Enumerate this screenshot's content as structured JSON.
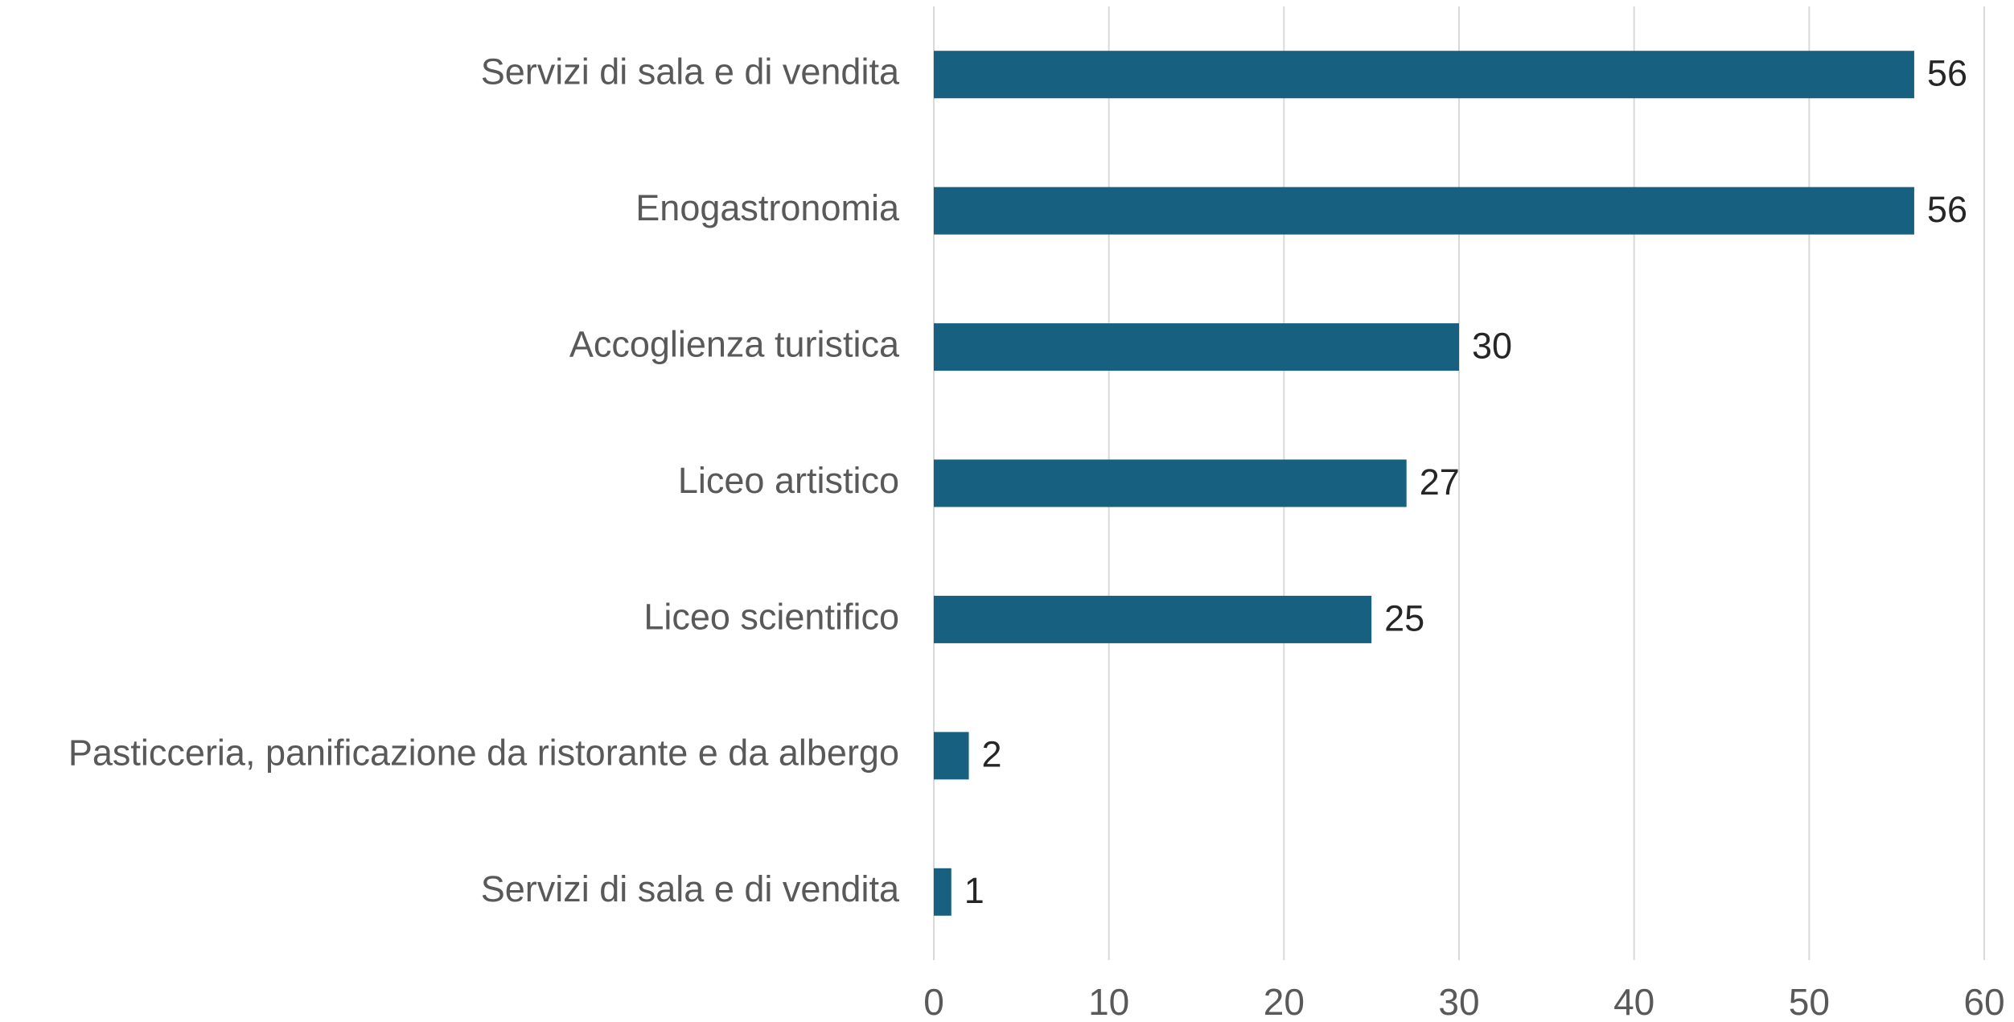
{
  "chart_data": {
    "type": "bar",
    "orientation": "horizontal",
    "categories": [
      "Servizi di sala e di vendita",
      "Enogastronomia",
      "Accoglienza turistica",
      "Liceo artistico",
      "Liceo scientifico",
      "Pasticceria, panificazione da ristorante e da albergo",
      "Servizi di sala e di vendita"
    ],
    "values": [
      56,
      56,
      30,
      27,
      25,
      2,
      1
    ],
    "color": "#17607f",
    "xlim": [
      0,
      60
    ],
    "xticks": [
      0,
      10,
      20,
      30,
      40,
      50,
      60
    ],
    "grid": true
  }
}
